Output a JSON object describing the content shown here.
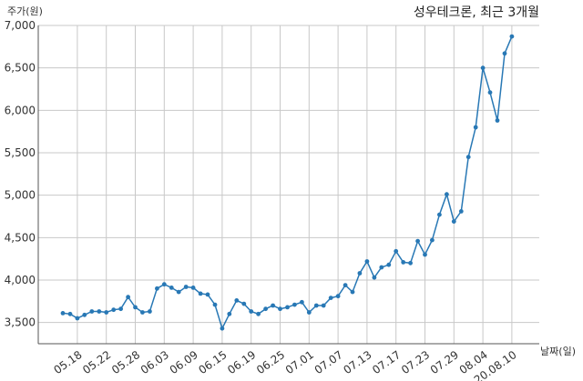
{
  "chart_data": {
    "type": "line",
    "title": "성우테크론, 최근 3개월",
    "ylabel": "주가(원)",
    "xlabel": "날짜(일)",
    "ylim": [
      3250,
      7000
    ],
    "yticks": [
      3500,
      4000,
      4500,
      5000,
      5500,
      6000,
      6500,
      7000
    ],
    "ytick_labels": [
      "3,500",
      "4,000",
      "4,500",
      "5,000",
      "5,500",
      "6,000",
      "6,500",
      "7,000"
    ],
    "xtick_labels": [
      {
        "label": "05.18",
        "index": 2
      },
      {
        "label": "05.22",
        "index": 6
      },
      {
        "label": "05.28",
        "index": 10
      },
      {
        "label": "06.03",
        "index": 14
      },
      {
        "label": "06.09",
        "index": 18
      },
      {
        "label": "06.15",
        "index": 22
      },
      {
        "label": "06.19",
        "index": 26
      },
      {
        "label": "06.25",
        "index": 30
      },
      {
        "label": "07.01",
        "index": 34
      },
      {
        "label": "07.07",
        "index": 38
      },
      {
        "label": "07.13",
        "index": 42
      },
      {
        "label": "07.17",
        "index": 46
      },
      {
        "label": "07.23",
        "index": 50
      },
      {
        "label": "07.29",
        "index": 54
      },
      {
        "label": "08.04",
        "index": 58
      },
      {
        "label": "20.08.10",
        "index": 62
      }
    ],
    "grid": true,
    "line_color": "#2878b5",
    "series": [
      {
        "values": [
          3610,
          3600,
          3550,
          3590,
          3630,
          3630,
          3620,
          3650,
          3660,
          3800,
          3680,
          3620,
          3630,
          3900,
          3950,
          3910,
          3860,
          3920,
          3910,
          3840,
          3830,
          3710,
          3430,
          3600,
          3760,
          3720,
          3630,
          3600,
          3660,
          3700,
          3660,
          3680,
          3710,
          3740,
          3620,
          3700,
          3700,
          3790,
          3810,
          3940,
          3860,
          4080,
          4220,
          4030,
          4150,
          4180,
          4340,
          4210,
          4200,
          4460,
          4300,
          4470,
          4770,
          5010,
          4690,
          4810,
          5450,
          5800,
          6500,
          6210,
          5880,
          6670,
          6870
        ]
      }
    ]
  }
}
